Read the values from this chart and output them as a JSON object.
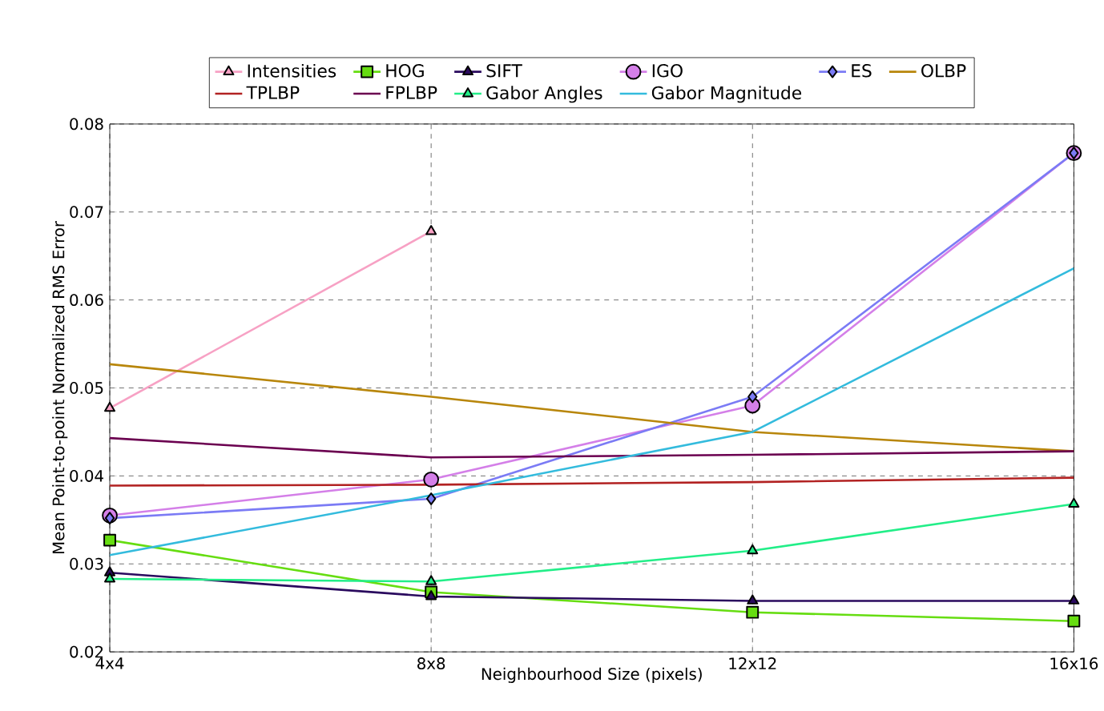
{
  "chart_data": {
    "type": "line",
    "xlabel": "Neighbourhood Size (pixels)",
    "ylabel": "Mean Point-to-point Normalized RMS Error",
    "categories": [
      "4x4",
      "8x8",
      "12x12",
      "16x16"
    ],
    "ylim": [
      0.02,
      0.08
    ],
    "yticks": [
      0.02,
      0.03,
      0.04,
      0.05,
      0.06,
      0.07,
      0.08
    ],
    "grid": true,
    "legend": "top",
    "series": [
      {
        "name": "Intensities",
        "color": "#f7a1c4",
        "marker": "triangle",
        "values": [
          0.0477,
          0.0678,
          null,
          null
        ]
      },
      {
        "name": "HOG",
        "color": "#66dd11",
        "marker": "square",
        "values": [
          0.0327,
          0.0268,
          0.0245,
          0.0235
        ]
      },
      {
        "name": "SIFT",
        "color": "#2a0a5e",
        "marker": "triangle",
        "values": [
          0.029,
          0.0263,
          0.0258,
          0.0258
        ]
      },
      {
        "name": "IGO",
        "color": "#d47fe8",
        "marker": "circle",
        "values": [
          0.0355,
          0.0396,
          0.048,
          0.0767
        ]
      },
      {
        "name": "ES",
        "color": "#7b7bf5",
        "marker": "diamond",
        "values": [
          0.0352,
          0.0374,
          0.049,
          0.0767
        ]
      },
      {
        "name": "OLBP",
        "color": "#b8860b",
        "marker": "none",
        "values": [
          0.0527,
          0.049,
          0.045,
          0.0428
        ]
      },
      {
        "name": "TPLBP",
        "color": "#b22222",
        "marker": "none",
        "values": [
          0.0389,
          0.039,
          0.0393,
          0.0398
        ]
      },
      {
        "name": "FPLBP",
        "color": "#6b0050",
        "marker": "none",
        "values": [
          0.0443,
          0.0421,
          0.0424,
          0.0428
        ]
      },
      {
        "name": "Gabor Angles",
        "color": "#22ee88",
        "marker": "triangle",
        "values": [
          0.0283,
          0.028,
          0.0315,
          0.0368
        ]
      },
      {
        "name": "Gabor Magnitude",
        "color": "#33bbdd",
        "marker": "none",
        "values": [
          0.031,
          0.0378,
          0.045,
          0.0636
        ]
      }
    ]
  }
}
